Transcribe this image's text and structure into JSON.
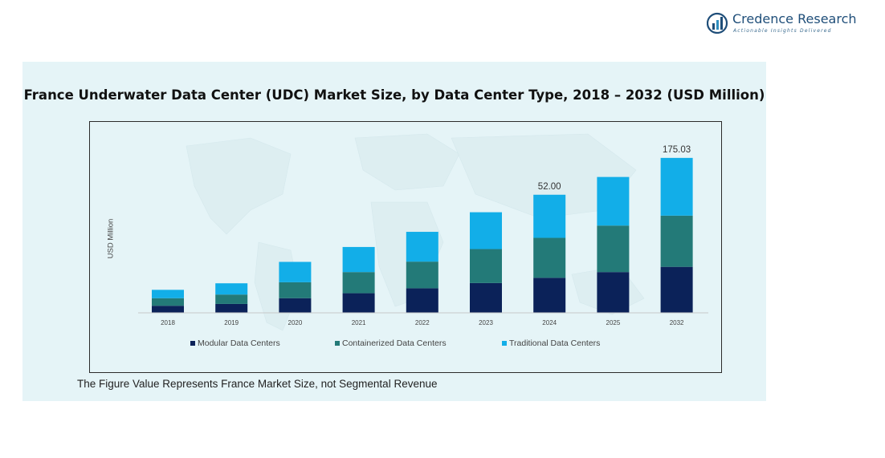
{
  "logo": {
    "name": "Credence Research",
    "tagline": "Actionable Insights Delivered"
  },
  "colors": {
    "panel_bg": "#e5f4f7",
    "modular": "#0b2259",
    "containerized": "#237a78",
    "traditional": "#12aee8"
  },
  "footnote": "The Figure Value Represents France Market Size, not Segmental Revenue",
  "chart_data": {
    "type": "bar",
    "stacked": true,
    "title": "France Underwater Data Center (UDC) Market Size, by Data Center Type, 2018 – 2032 (USD Million)",
    "xlabel": "",
    "ylabel": "USD Million",
    "categories": [
      "2018",
      "2019",
      "2020",
      "2021",
      "2022",
      "2023",
      "2024",
      "2025",
      "2032"
    ],
    "series": [
      {
        "name": "Modular Data Centers",
        "color": "#0b2259",
        "values": [
          2.7,
          3.4,
          5.6,
          7.5,
          9.4,
          11.4,
          13.4,
          15.6,
          17.6
        ]
      },
      {
        "name": "Containerized Data Centers",
        "color": "#237a78",
        "values": [
          2.9,
          3.6,
          6.1,
          8.1,
          10.2,
          13.0,
          15.3,
          17.8,
          19.6
        ]
      },
      {
        "name": "Traditional Data Centers",
        "color": "#12aee8",
        "values": [
          3.2,
          4.3,
          7.8,
          9.6,
          11.4,
          14.1,
          16.5,
          18.6,
          22.1
        ]
      }
    ],
    "data_labels": [
      {
        "category": "2024",
        "text": "52.00"
      },
      {
        "category": "2032",
        "text": "175.03"
      }
    ],
    "legend_position": "bottom",
    "grid": false,
    "ylim": [
      0,
      70
    ]
  }
}
